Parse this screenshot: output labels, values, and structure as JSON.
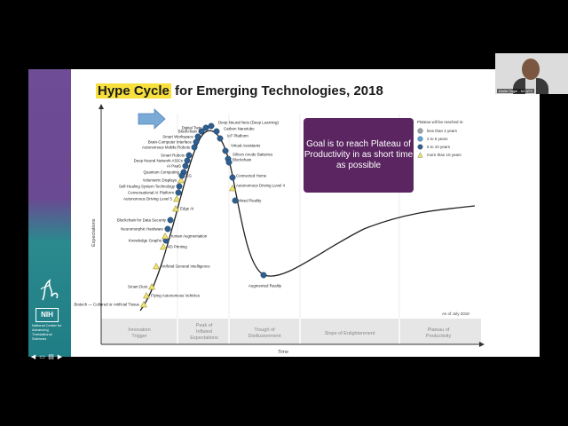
{
  "slide": {
    "title_highlight": "Hype Cycle",
    "title_rest": " for Emerging Technologies, 2018",
    "goal_text": "Goal is to reach Plateau of Productivity in as short time as possible",
    "as_of": "As of July 2018",
    "y_axis": "Expectations",
    "x_axis": "Time",
    "legend_title": "Plateau will be reached in:",
    "legend": [
      {
        "label": "less than 2 years",
        "shape": "circle",
        "color": "#9aa3ad"
      },
      {
        "label": "2 to 5 years",
        "shape": "circle",
        "color": "#5ba3d6"
      },
      {
        "label": "5 to 10 years",
        "shape": "circle",
        "color": "#2f5f8f"
      },
      {
        "label": "more than 10 years",
        "shape": "triangle",
        "color": "#f1e36b"
      }
    ],
    "phases": [
      "Innovation Trigger",
      "Peak of Inflated Expectations",
      "Trough of Disillusionment",
      "Slope of Enlightenment",
      "Plateau of Productivity"
    ],
    "technologies_left": [
      "Digital Twin",
      "Blockchain",
      "Smart Workspace",
      "Brain-Computer Interface",
      "Autonomous Mobile Robots",
      "Smart Robots",
      "Deep Neural Network ASICs",
      "AI PaaS",
      "Quantum Computing",
      "Volumetric Displays",
      "Self-Healing System Technology",
      "Conversational AI Platform",
      "Autonomous Driving Level 5",
      "Blockchain for Data Security",
      "Neuromorphic Hardware",
      "Knowledge Graphs",
      "Smart Dust",
      "Biotech — Cultured or Artificial Tissue"
    ],
    "technologies_right": [
      "Deep Neural Nets (Deep Learning)",
      "Carbon Nanotube",
      "IoT Platform",
      "Virtual Assistants",
      "Silicon Anode Batteries",
      "Blockchain",
      "Connected Home",
      "Autonomous Driving Level 4",
      "Mixed Reality",
      "Augmented Reality"
    ],
    "technologies_mid": [
      "5G",
      "Edge AI",
      "Human Augmentation",
      "4D Printing",
      "Artificial General Intelligence",
      "Flying Autonomous Vehicles"
    ]
  },
  "sidebar": {
    "org_badge": "NIH",
    "org_text": "National Center for Advancing Translational Sciences"
  },
  "video": {
    "participant": "Dmitri Tagle - NCATS"
  },
  "nav": [
    "◀",
    "▭",
    "▤",
    "▶"
  ]
}
